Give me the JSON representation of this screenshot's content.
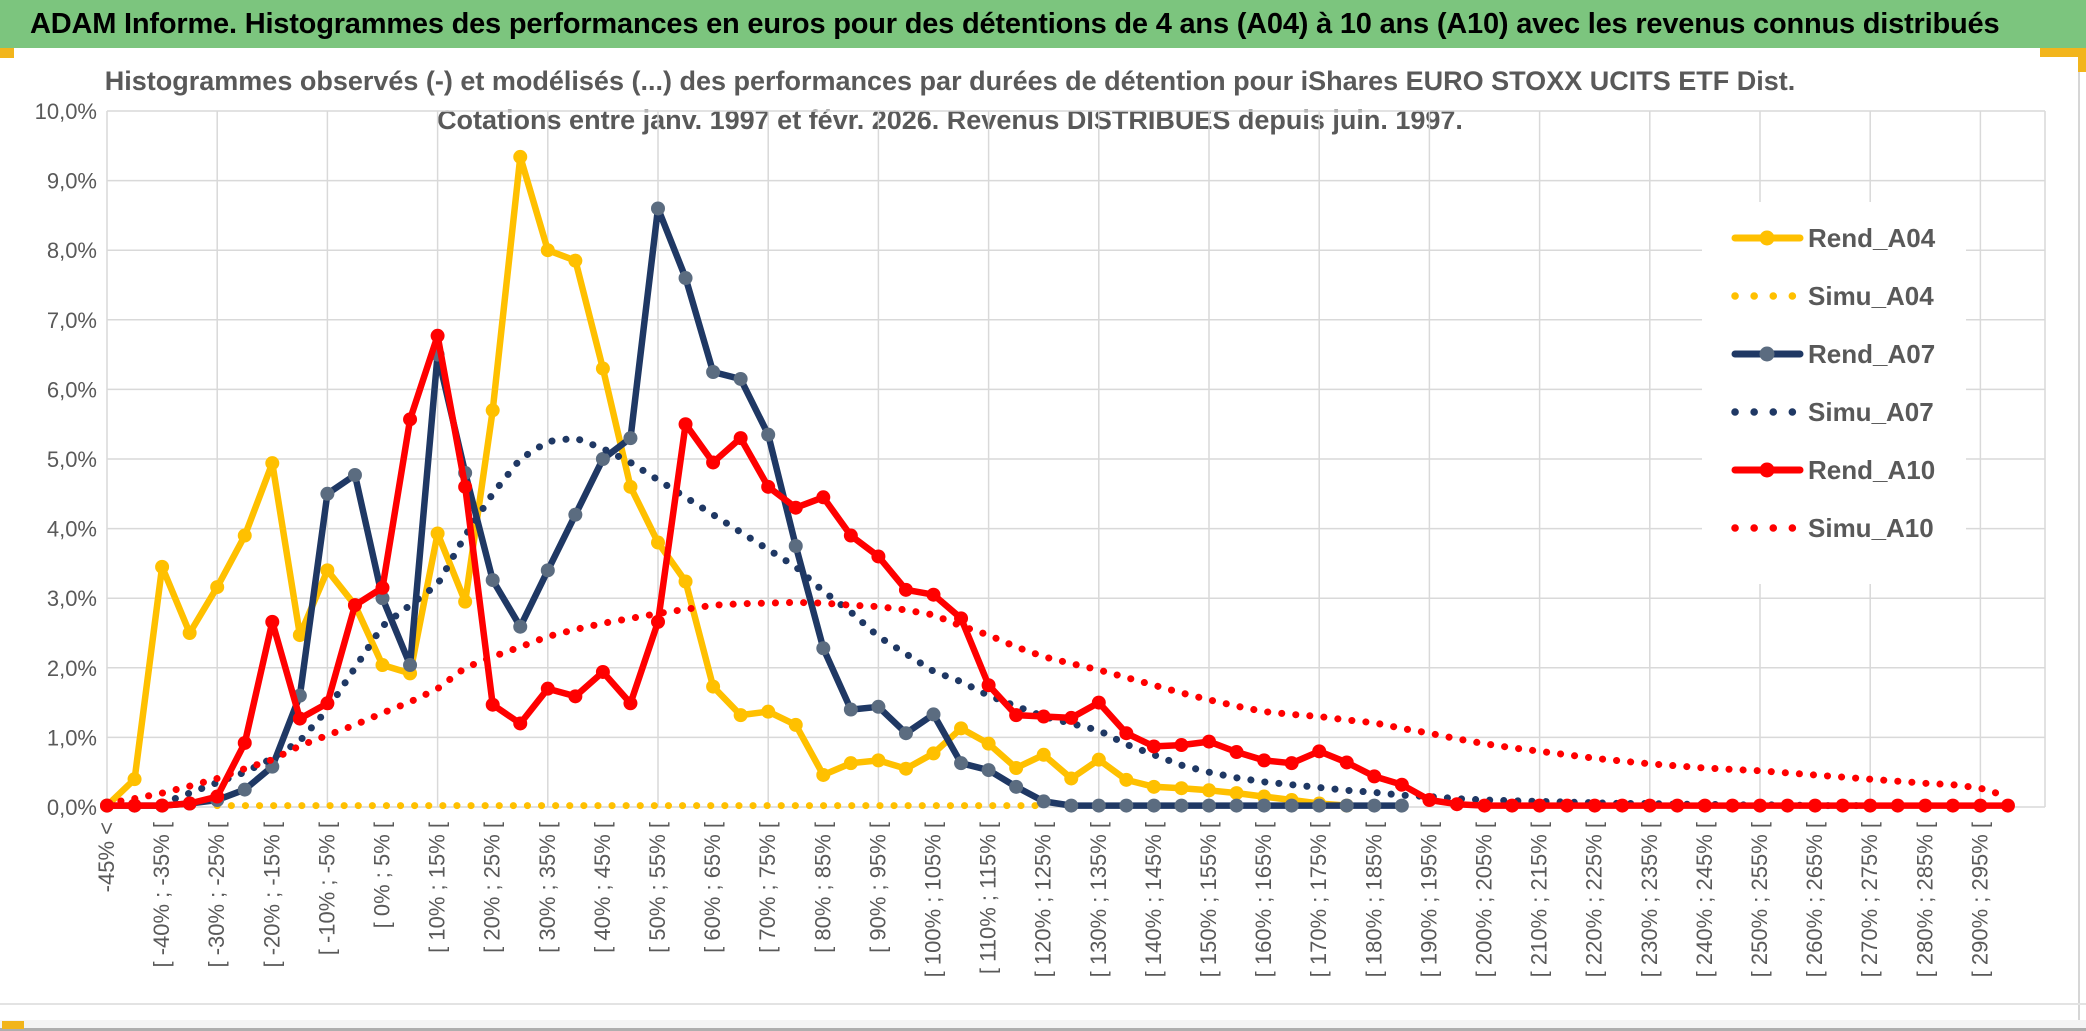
{
  "window": {
    "title": "ADAM Informe. Histogrammes des performances en euros pour des détentions de 4 ans (A04) à 10 ans (A10) avec les revenus connus distribués"
  },
  "colors": {
    "header_green": "#7cc57e",
    "gold": "#FFC000",
    "navy": "#1F3864",
    "navy_marker": "#5B6C80",
    "red": "#FF0000",
    "grid": "#D9D9D9",
    "axis_text": "#595959",
    "accent_gold": "#F2B51C"
  },
  "chart_data": {
    "type": "line",
    "title_line1": "Histogrammes observés (-) et modélisés (...) des performances par durées de détention pour iShares EURO STOXX UCITS ETF Dist.",
    "title_line2": "Cotations entre janv. 1997 et févr. 2026. Revenus DISTRIBUES depuis juin. 1997.",
    "ylabel": "",
    "xlabel": "",
    "ylim": [
      0,
      10
    ],
    "grid": true,
    "legend_position": "right",
    "y_ticks": [
      "0,0%",
      "1,0%",
      "2,0%",
      "3,0%",
      "4,0%",
      "5,0%",
      "6,0%",
      "7,0%",
      "8,0%",
      "9,0%",
      "10,0%"
    ],
    "bins": 70,
    "x_tick_labels": [
      "-45% <",
      "[ -40% ; -35% [",
      "[ -30% ; -25% [",
      "[ -20% ; -15% [",
      "[ -10% ; -5% [",
      "[ 0% ; 5% [",
      "[ 10% ; 15% [",
      "[ 20% ; 25% [",
      "[ 30% ; 35% [",
      "[ 40% ; 45% [",
      "[ 50% ; 55% [",
      "[ 60% ; 65% [",
      "[ 70% ; 75% [",
      "[ 80% ; 85% [",
      "[ 90% ; 95% [",
      "[ 100% ; 105% [",
      "[ 110% ; 115% [",
      "[ 120% ; 125% [",
      "[ 130% ; 135% [",
      "[ 140% ; 145% [",
      "[ 150% ; 155% [",
      "[ 160% ; 165% [",
      "[ 170% ; 175% [",
      "[ 180% ; 185% [",
      "[ 190% ; 195% [",
      "[ 200% ; 205% [",
      "[ 210% ; 215% [",
      "[ 220% ; 225% [",
      "[ 230% ; 235% [",
      "[ 240% ; 245% [",
      "[ 250% ; 255% [",
      "[ 260% ; 265% [",
      "[ 270% ; 275% [",
      "[ 280% ; 285% [",
      "[ 290% ; 295% ["
    ],
    "series": [
      {
        "name": "Rend_A04",
        "style": "solid",
        "color": "#FFC000",
        "marker_color": "#FFC000",
        "values": [
          0.02,
          0.4,
          3.45,
          2.5,
          3.16,
          3.9,
          4.94,
          2.47,
          3.4,
          2.9,
          2.04,
          1.92,
          3.93,
          2.95,
          5.7,
          9.34,
          8.0,
          7.85,
          6.3,
          4.6,
          3.8,
          3.24,
          1.73,
          1.32,
          1.37,
          1.18,
          0.46,
          0.63,
          0.67,
          0.55,
          0.77,
          1.13,
          0.91,
          0.56,
          0.75,
          0.41,
          0.68,
          0.39,
          0.29,
          0.27,
          0.24,
          0.2,
          0.15,
          0.1,
          0.05,
          0.02,
          null,
          null,
          null,
          null,
          null,
          null,
          null,
          null,
          null,
          null,
          null,
          null,
          null,
          null,
          null,
          null,
          null,
          null,
          null,
          null,
          null,
          null,
          null,
          null
        ]
      },
      {
        "name": "Simu_A04",
        "style": "dotted",
        "color": "#FFC000",
        "marker_color": "#FFC000",
        "values": [
          null,
          null,
          null,
          null,
          0.02,
          0.02,
          0.02,
          0.02,
          0.02,
          0.02,
          0.02,
          0.02,
          0.02,
          0.02,
          0.02,
          0.02,
          0.02,
          0.02,
          0.02,
          0.02,
          0.02,
          0.02,
          0.02,
          0.02,
          0.02,
          0.02,
          0.02,
          0.02,
          0.02,
          0.02,
          0.02,
          0.02,
          0.02,
          0.02,
          0.02,
          null,
          null,
          null,
          null,
          null,
          null,
          null,
          null,
          null,
          null,
          null,
          null,
          null,
          null,
          null,
          null,
          null,
          null,
          null,
          null,
          null,
          null,
          null,
          null,
          null,
          null,
          null,
          null,
          null,
          null,
          null,
          null,
          null,
          null,
          null
        ]
      },
      {
        "name": "Rend_A07",
        "style": "solid",
        "color": "#1F3864",
        "marker_color": "#5B6C80",
        "values": [
          0.02,
          0.02,
          0.02,
          0.05,
          0.1,
          0.25,
          0.58,
          1.6,
          4.5,
          4.77,
          3.0,
          2.04,
          6.5,
          4.8,
          3.26,
          2.59,
          3.4,
          4.2,
          5.0,
          5.3,
          8.6,
          7.6,
          6.25,
          6.15,
          5.35,
          3.75,
          2.28,
          1.4,
          1.44,
          1.06,
          1.33,
          0.63,
          0.53,
          0.29,
          0.08,
          0.02,
          0.02,
          0.02,
          0.02,
          0.02,
          0.02,
          0.02,
          0.02,
          0.02,
          0.02,
          0.02,
          0.02,
          0.02,
          null,
          null,
          null,
          null,
          null,
          null,
          null,
          null,
          null,
          null,
          null,
          null,
          null,
          null,
          null,
          null,
          null,
          null,
          null,
          null,
          null,
          null
        ]
      },
      {
        "name": "Simu_A07",
        "style": "dotted",
        "color": "#1F3864",
        "marker_color": "#1F3864",
        "values": [
          null,
          null,
          0.05,
          0.2,
          0.35,
          0.5,
          0.7,
          0.95,
          1.4,
          2.0,
          2.6,
          2.9,
          3.2,
          3.9,
          4.5,
          5.0,
          5.25,
          5.3,
          5.15,
          4.95,
          4.7,
          4.45,
          4.2,
          3.95,
          3.7,
          3.45,
          3.1,
          2.8,
          2.45,
          2.2,
          1.95,
          1.8,
          1.6,
          1.45,
          1.3,
          1.2,
          1.1,
          0.9,
          0.75,
          0.6,
          0.5,
          0.42,
          0.36,
          0.32,
          0.28,
          0.24,
          0.21,
          0.17,
          0.15,
          0.12,
          0.1,
          0.09,
          0.08,
          0.07,
          0.06,
          0.05,
          0.05,
          0.04,
          0.04,
          0.03,
          0.03,
          0.03,
          0.02,
          0.02,
          0.02,
          null,
          null,
          null,
          null,
          null
        ]
      },
      {
        "name": "Rend_A10",
        "style": "solid",
        "color": "#FF0000",
        "marker_color": "#FF0000",
        "values": [
          0.02,
          0.02,
          0.02,
          0.05,
          0.15,
          0.92,
          2.66,
          1.27,
          1.49,
          2.9,
          3.15,
          5.57,
          6.77,
          4.6,
          1.47,
          1.2,
          1.7,
          1.59,
          1.94,
          1.49,
          2.66,
          5.5,
          4.95,
          5.3,
          4.6,
          4.3,
          4.45,
          3.9,
          3.6,
          3.12,
          3.05,
          2.71,
          1.75,
          1.32,
          1.3,
          1.28,
          1.5,
          1.06,
          0.87,
          0.89,
          0.94,
          0.79,
          0.67,
          0.63,
          0.8,
          0.64,
          0.44,
          0.32,
          0.1,
          0.04,
          0.02,
          0.02,
          0.02,
          0.02,
          0.02,
          0.02,
          0.02,
          0.02,
          0.02,
          0.02,
          0.02,
          0.02,
          0.02,
          0.02,
          0.02,
          0.02,
          0.02,
          0.02,
          0.02,
          0.02
        ]
      },
      {
        "name": "Simu_A10",
        "style": "dotted",
        "color": "#FF0000",
        "marker_color": "#FF0000",
        "values": [
          0.05,
          0.12,
          0.2,
          0.3,
          0.41,
          0.55,
          0.68,
          0.88,
          1.03,
          1.18,
          1.35,
          1.51,
          1.7,
          2.0,
          2.16,
          2.3,
          2.45,
          2.55,
          2.64,
          2.71,
          2.78,
          2.84,
          2.9,
          2.92,
          2.93,
          2.94,
          2.93,
          2.9,
          2.88,
          2.83,
          2.76,
          2.6,
          2.47,
          2.3,
          2.16,
          2.06,
          1.97,
          1.86,
          1.75,
          1.64,
          1.54,
          1.45,
          1.37,
          1.33,
          1.3,
          1.25,
          1.21,
          1.13,
          1.06,
          0.98,
          0.91,
          0.85,
          0.8,
          0.75,
          0.7,
          0.66,
          0.62,
          0.59,
          0.56,
          0.54,
          0.52,
          0.49,
          0.46,
          0.43,
          0.4,
          0.37,
          0.34,
          0.32,
          0.27,
          0.15
        ]
      }
    ],
    "legend_entries": [
      "Rend_A04",
      "Simu_A04",
      "Rend_A07",
      "Simu_A07",
      "Rend_A10",
      "Simu_A10"
    ]
  }
}
